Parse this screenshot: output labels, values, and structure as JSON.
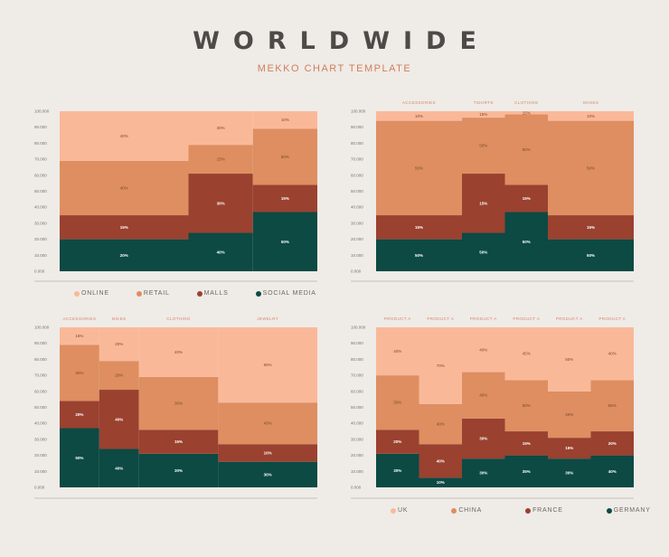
{
  "header": {
    "title": "WORLDWIDE",
    "subtitle": "MEKKO CHART TEMPLATE"
  },
  "colors": {
    "online": "#f9b999",
    "retail": "#de8e60",
    "malls": "#9a4130",
    "social": "#0c4a43"
  },
  "legend_top": [
    {
      "label": "ONLINE",
      "color": "#f9b999"
    },
    {
      "label": "RETAIL",
      "color": "#de8e60"
    },
    {
      "label": "MALLS",
      "color": "#9a4130"
    },
    {
      "label": "SOCIAL MEDIA",
      "color": "#0c4a43"
    }
  ],
  "legend_bottom": [
    {
      "label": "UK",
      "color": "#f9b999"
    },
    {
      "label": "CHINA",
      "color": "#de8e60"
    },
    {
      "label": "FRANCE",
      "color": "#9a4130"
    },
    {
      "label": "GERMANY",
      "color": "#0c4a43"
    }
  ],
  "chart_data": [
    {
      "type": "mekko",
      "ticks": [
        "0.000",
        "10.000",
        "20.000",
        "30.000",
        "40.000",
        "50.000",
        "60.000",
        "70.000",
        "80.000",
        "90.000",
        "100.000"
      ],
      "ylim": [
        0,
        100
      ],
      "category_labels": [],
      "widths": [
        2,
        1,
        1
      ],
      "columns": [
        {
          "segments": [
            {
              "value": 20,
              "label": "20%"
            },
            {
              "value": 15,
              "label": "15%"
            },
            {
              "value": 34,
              "label": "40%"
            },
            {
              "value": 31,
              "label": "40%"
            }
          ]
        },
        {
          "segments": [
            {
              "value": 24,
              "label": "40%"
            },
            {
              "value": 37,
              "label": "30%"
            },
            {
              "value": 18,
              "label": "15%"
            },
            {
              "value": 21,
              "label": "30%"
            }
          ]
        },
        {
          "segments": [
            {
              "value": 37,
              "label": "50%"
            },
            {
              "value": 17,
              "label": "15%"
            },
            {
              "value": 35,
              "label": "50%"
            },
            {
              "value": 11,
              "label": "10%"
            }
          ]
        }
      ]
    },
    {
      "type": "mekko",
      "ticks": [
        "0.000",
        "10.000",
        "20.000",
        "30.000",
        "40.000",
        "50.000",
        "60.000",
        "70.000",
        "80.000",
        "90.000",
        "100.000"
      ],
      "ylim": [
        0,
        100
      ],
      "category_labels": [
        "ACCESSORIES",
        "TSHIRTS",
        "CLOTHING",
        "SHOES"
      ],
      "widths": [
        2,
        1,
        1,
        2
      ],
      "columns": [
        {
          "segments": [
            {
              "value": 20,
              "label": "50%"
            },
            {
              "value": 15,
              "label": "15%"
            },
            {
              "value": 59,
              "label": "50%"
            },
            {
              "value": 6,
              "label": "10%"
            }
          ]
        },
        {
          "segments": [
            {
              "value": 24,
              "label": "50%"
            },
            {
              "value": 37,
              "label": "15%"
            },
            {
              "value": 35,
              "label": "50%"
            },
            {
              "value": 4,
              "label": "15%"
            }
          ]
        },
        {
          "segments": [
            {
              "value": 37,
              "label": "50%"
            },
            {
              "value": 17,
              "label": "15%"
            },
            {
              "value": 44,
              "label": "50%"
            },
            {
              "value": 2,
              "label": "15%"
            }
          ]
        },
        {
          "segments": [
            {
              "value": 20,
              "label": "50%"
            },
            {
              "value": 15,
              "label": "15%"
            },
            {
              "value": 59,
              "label": "50%"
            },
            {
              "value": 6,
              "label": "10%"
            }
          ]
        }
      ]
    },
    {
      "type": "mekko",
      "ticks": [
        "0.000",
        "10.000",
        "20.000",
        "30.000",
        "40.000",
        "50.000",
        "60.000",
        "70.000",
        "80.000",
        "90.000",
        "100.000"
      ],
      "ylim": [
        0,
        100
      ],
      "category_labels": [
        "ACCESSORIES",
        "BIKES",
        "CLOTHING",
        "JEWELRY"
      ],
      "widths": [
        2,
        2,
        4,
        5
      ],
      "columns": [
        {
          "segments": [
            {
              "value": 37,
              "label": "50%"
            },
            {
              "value": 17,
              "label": "20%"
            },
            {
              "value": 35,
              "label": "30%"
            },
            {
              "value": 11,
              "label": "15%"
            }
          ]
        },
        {
          "segments": [
            {
              "value": 24,
              "label": "40%"
            },
            {
              "value": 37,
              "label": "40%"
            },
            {
              "value": 18,
              "label": "20%"
            },
            {
              "value": 21,
              "label": "20%"
            }
          ]
        },
        {
          "segments": [
            {
              "value": 21,
              "label": "30%"
            },
            {
              "value": 15,
              "label": "15%"
            },
            {
              "value": 33,
              "label": "30%"
            },
            {
              "value": 31,
              "label": "40%"
            }
          ]
        },
        {
          "segments": [
            {
              "value": 16,
              "label": "30%"
            },
            {
              "value": 11,
              "label": "10%"
            },
            {
              "value": 26,
              "label": "40%"
            },
            {
              "value": 47,
              "label": "60%"
            }
          ]
        }
      ]
    },
    {
      "type": "mekko",
      "ticks": [
        "0.000",
        "10.000",
        "20.000",
        "30.000",
        "40.000",
        "50.000",
        "60.000",
        "70.000",
        "80.000",
        "90.000",
        "100.000"
      ],
      "ylim": [
        0,
        100
      ],
      "category_labels": [
        "PRODUCT A",
        "PRODUCT A",
        "PRODUCT A",
        "PRODUCT A",
        "PRODUCT A",
        "PRODUCT A"
      ],
      "widths": [
        1,
        1,
        1,
        1,
        1,
        1
      ],
      "columns": [
        {
          "segments": [
            {
              "value": 21,
              "label": "30%"
            },
            {
              "value": 15,
              "label": "20%"
            },
            {
              "value": 34,
              "label": "30%"
            },
            {
              "value": 30,
              "label": "40%"
            }
          ]
        },
        {
          "segments": [
            {
              "value": 6,
              "label": "10%"
            },
            {
              "value": 21,
              "label": "40%"
            },
            {
              "value": 25,
              "label": "40%"
            },
            {
              "value": 48,
              "label": "70%"
            }
          ]
        },
        {
          "segments": [
            {
              "value": 18,
              "label": "30%"
            },
            {
              "value": 25,
              "label": "30%"
            },
            {
              "value": 29,
              "label": "40%"
            },
            {
              "value": 28,
              "label": "40%"
            }
          ]
        },
        {
          "segments": [
            {
              "value": 20,
              "label": "35%"
            },
            {
              "value": 15,
              "label": "15%"
            },
            {
              "value": 32,
              "label": "50%"
            },
            {
              "value": 33,
              "label": "45%"
            }
          ]
        },
        {
          "segments": [
            {
              "value": 18,
              "label": "30%"
            },
            {
              "value": 13,
              "label": "15%"
            },
            {
              "value": 29,
              "label": "40%"
            },
            {
              "value": 40,
              "label": "50%"
            }
          ]
        },
        {
          "segments": [
            {
              "value": 20,
              "label": "40%"
            },
            {
              "value": 15,
              "label": "20%"
            },
            {
              "value": 32,
              "label": "55%"
            },
            {
              "value": 33,
              "label": "40%"
            }
          ]
        }
      ]
    }
  ]
}
